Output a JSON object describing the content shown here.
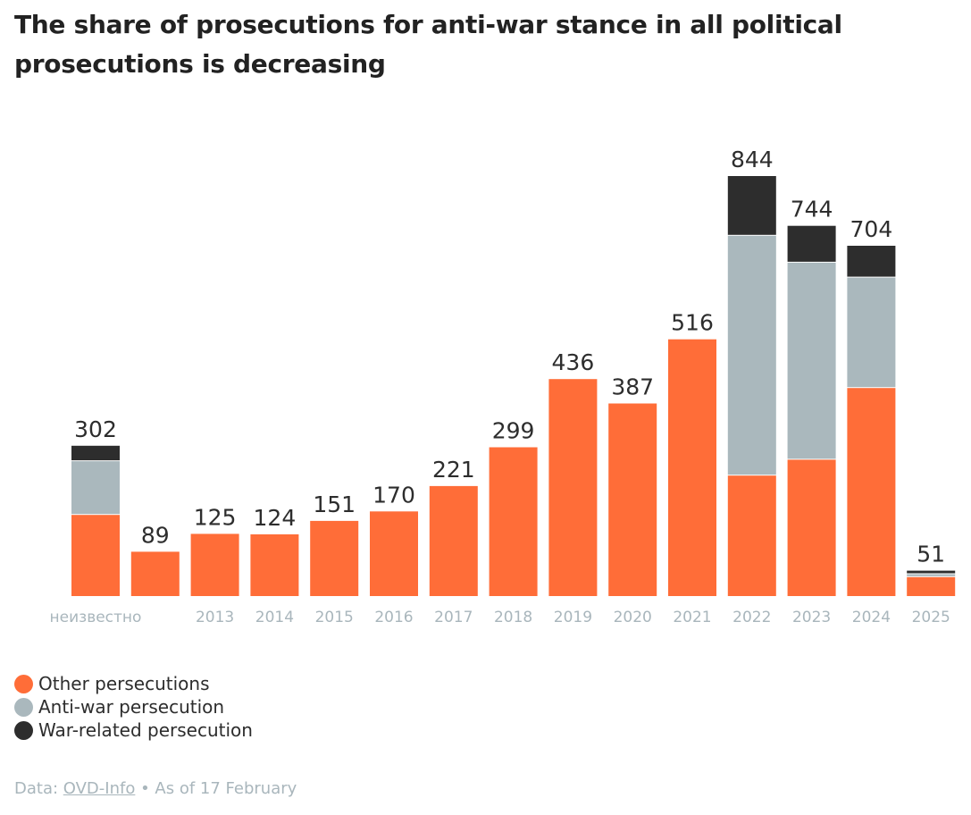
{
  "header": {
    "title": "The share of prosecutions for anti-war stance in all political prosecutions is decreasing"
  },
  "chart_data": {
    "type": "bar",
    "stacked": true,
    "title": "The share of prosecutions for anti-war stance in all political prosecutions is decreasing",
    "categories": [
      "неизвестно",
      "",
      "2013",
      "2014",
      "2015",
      "2016",
      "2017",
      "2018",
      "2019",
      "2020",
      "2021",
      "2022",
      "2023",
      "2024",
      "2025"
    ],
    "series": [
      {
        "name": "Other persecutions",
        "color": "#ff6d38",
        "values": [
          163,
          89,
          125,
          124,
          151,
          170,
          221,
          299,
          436,
          387,
          516,
          242,
          274,
          418,
          38
        ]
      },
      {
        "name": "Anti-war persecution",
        "color": "#aab8bd",
        "values": [
          108,
          0,
          0,
          0,
          0,
          0,
          0,
          0,
          0,
          0,
          0,
          482,
          396,
          222,
          6
        ]
      },
      {
        "name": "War-related persecution",
        "color": "#2d2d2d",
        "values": [
          31,
          0,
          0,
          0,
          0,
          0,
          0,
          0,
          0,
          0,
          0,
          120,
          74,
          64,
          7
        ]
      }
    ],
    "totals": [
      "302",
      "89",
      "125",
      "124",
      "151",
      "170",
      "221",
      "299",
      "436",
      "387",
      "516",
      "844",
      "744",
      "704",
      "51"
    ],
    "xlabel": "",
    "ylabel": "",
    "ylim": [
      0,
      844
    ],
    "grid": false,
    "legend_position": "bottom-left"
  },
  "legend": {
    "items": [
      {
        "label": "Other persecutions",
        "color": "#ff6d38"
      },
      {
        "label": "Anti-war persecution",
        "color": "#aab8bd"
      },
      {
        "label": "War-related persecution",
        "color": "#2d2d2d"
      }
    ]
  },
  "source": {
    "prefix": "Data: ",
    "link_text": "OVD-Info",
    "suffix": " • As of 17 February"
  }
}
